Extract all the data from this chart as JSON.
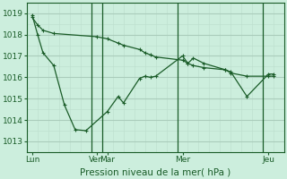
{
  "background_color": "#cceedd",
  "grid_color_major": "#aaccbb",
  "grid_color_minor": "#bbddcc",
  "line_color": "#1a5c28",
  "title": "Pression niveau de la mer( hPa )",
  "ylim": [
    1012.5,
    1019.5
  ],
  "yticks": [
    1013,
    1014,
    1015,
    1016,
    1017,
    1018,
    1019
  ],
  "xlim": [
    0,
    24
  ],
  "xtick_labels": [
    "Lun",
    "Ven",
    "Mar",
    "Mer",
    "Jeu"
  ],
  "xtick_positions": [
    0.5,
    6.5,
    7.5,
    14.5,
    22.5
  ],
  "vline_positions": [
    6,
    7,
    14,
    22
  ],
  "series1_x": [
    0.5,
    1.0,
    1.5,
    2.5,
    3.5,
    4.5,
    5.5,
    7.5,
    8.5,
    9.0,
    10.5,
    11.0,
    11.5,
    12.0,
    14.5,
    15.0,
    15.5,
    16.5,
    18.5,
    19.0,
    20.5,
    22.5,
    23.0
  ],
  "series1_y": [
    1018.9,
    1018.0,
    1017.15,
    1016.55,
    1014.7,
    1013.55,
    1013.5,
    1014.4,
    1015.1,
    1014.8,
    1015.95,
    1016.05,
    1016.0,
    1016.05,
    1017.0,
    1016.65,
    1016.9,
    1016.65,
    1016.35,
    1016.25,
    1015.1,
    1016.15,
    1016.15
  ],
  "series2_x": [
    0.5,
    1.0,
    1.5,
    2.5,
    6.5,
    7.5,
    8.5,
    9.0,
    10.5,
    11.0,
    11.5,
    12.0,
    14.5,
    15.0,
    15.5,
    16.5,
    18.5,
    19.0,
    20.5,
    22.5,
    23.0
  ],
  "series2_y": [
    1018.8,
    1018.45,
    1018.2,
    1018.05,
    1017.9,
    1017.8,
    1017.6,
    1017.5,
    1017.3,
    1017.15,
    1017.05,
    1016.95,
    1016.8,
    1016.65,
    1016.55,
    1016.45,
    1016.35,
    1016.2,
    1016.05,
    1016.05,
    1016.05
  ]
}
